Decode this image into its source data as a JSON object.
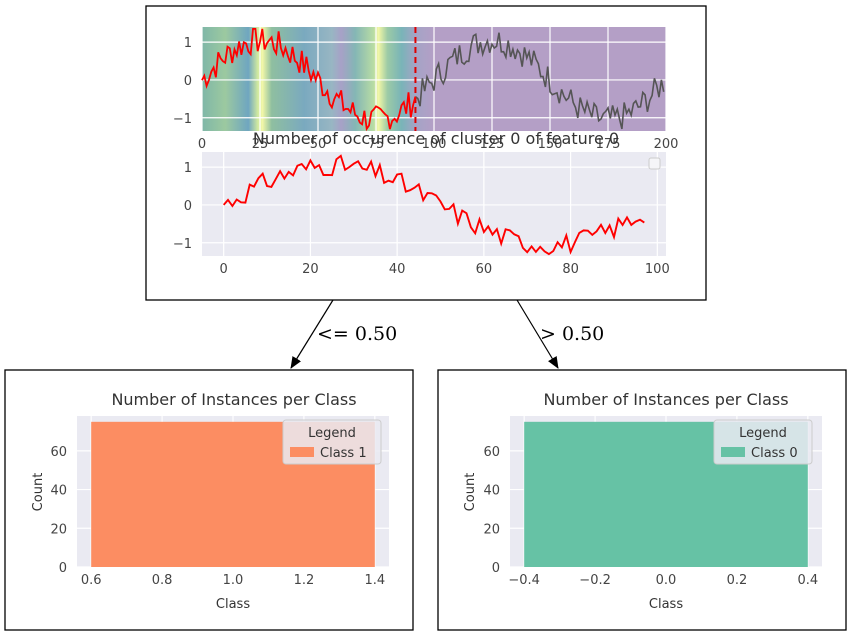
{
  "root_node": {
    "title": "Number of occurence of cluster 0 of feature 0",
    "top_plot": {
      "x_ticks": [
        "0",
        "25",
        "50",
        "75",
        "100",
        "125",
        "150",
        "175",
        "200"
      ],
      "y_ticks": [
        "1",
        "0",
        "−1"
      ],
      "split_x": 92,
      "colors": {
        "highlight": "#ff0000",
        "rest": "#555555",
        "split": "#dd0000"
      }
    },
    "bottom_plot": {
      "x_ticks": [
        "0",
        "20",
        "40",
        "60",
        "80",
        "100"
      ],
      "y_ticks": [
        "1",
        "0",
        "−1"
      ],
      "line_color": "#ff0000"
    }
  },
  "edges": {
    "left_label": "<= 0.50",
    "right_label": "> 0.50"
  },
  "left_leaf": {
    "title": "Number of Instances per Class",
    "xlabel": "Class",
    "ylabel": "Count",
    "x_ticks": [
      "0.6",
      "0.8",
      "1.0",
      "1.2",
      "1.4"
    ],
    "y_ticks": [
      "0",
      "20",
      "40",
      "60"
    ],
    "legend_title": "Legend",
    "legend_label": "Class 1",
    "bar_color": "#fc8d62"
  },
  "right_leaf": {
    "title": "Number of Instances per Class",
    "xlabel": "Class",
    "ylabel": "Count",
    "x_ticks": [
      "−0.4",
      "−0.2",
      "0.0",
      "0.2",
      "0.4"
    ],
    "y_ticks": [
      "0",
      "20",
      "40",
      "60"
    ],
    "legend_title": "Legend",
    "legend_label": "Class 0",
    "bar_color": "#66c2a5"
  },
  "chart_data": [
    {
      "type": "line",
      "series": [
        {
          "y_first_100_sample": [
            0.0,
            0.1,
            0.3,
            0.5,
            0.2,
            0.6,
            0.8,
            0.9,
            1.0,
            0.7,
            1.1,
            1.2,
            0.9,
            1.3,
            1.0,
            1.2,
            1.35,
            1.1,
            0.9,
            1.2
          ]
        },
        {
          "y_last_100_sample": [
            0.2,
            0.6,
            1.0,
            1.2,
            1.3,
            1.1,
            0.8,
            0.5,
            0.2,
            -0.2,
            -0.5,
            -0.8,
            -1.0,
            -1.2,
            -1.1,
            -0.8,
            -0.5,
            -0.2,
            0.0,
            0.1
          ]
        }
      ],
      "xlim": [
        0,
        200
      ],
      "ylim": [
        -1.35,
        1.4
      ]
    },
    {
      "type": "line",
      "series": [
        {
          "y_sample": [
            0.0,
            -0.1,
            0.4,
            0.5,
            0.1,
            0.7,
            0.7,
            0.6,
            0.7,
            0.8,
            0.6,
            0.9,
            1.1,
            0.8,
            1.2,
            1.0,
            1.2,
            0.8,
            0.9,
            0.7,
            0.4,
            0.0,
            -0.3,
            -0.4,
            -0.3,
            -0.8,
            -0.9,
            -1.0,
            -1.2,
            -1.1,
            -1.0,
            -0.9,
            -0.8,
            -0.6,
            -0.3
          ]
        }
      ],
      "xlim": [
        -5,
        102
      ],
      "ylim": [
        -1.35,
        1.4
      ]
    },
    {
      "type": "bar",
      "categories": [
        "1"
      ],
      "values": [
        75
      ],
      "ylim": [
        0,
        78
      ]
    },
    {
      "type": "bar",
      "categories": [
        "0"
      ],
      "values": [
        75
      ],
      "ylim": [
        0,
        78
      ]
    }
  ]
}
